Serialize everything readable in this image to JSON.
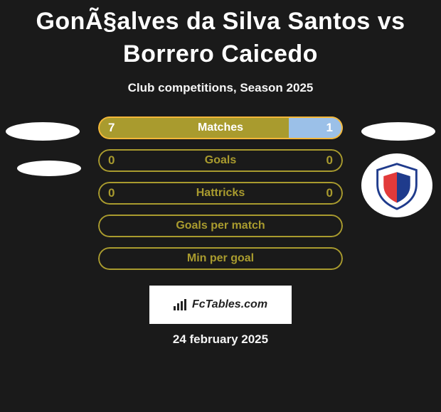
{
  "title": "GonÃ§alves da Silva Santos vs Borrero Caicedo",
  "subtitle": "Club competitions, Season 2025",
  "date": "24 february 2025",
  "footer_label": "FcTables.com",
  "colors": {
    "background": "#1a1a1a",
    "series_left": "#a99b2e",
    "series_right": "#9bc0e8",
    "outline": "#f4b739",
    "text": "#ffffff",
    "footer_bg": "#ffffff",
    "footer_text": "#222222"
  },
  "crest": {
    "top_color": "#ffffff",
    "left_color": "#e23a3a",
    "right_color": "#1f3b8c",
    "outline": "#1f3b8c"
  },
  "bars": [
    {
      "label": "Matches",
      "left": "7",
      "right": "1",
      "left_pct": 78,
      "right_pct": 22,
      "style": "split",
      "left_text_color": "#ffffff",
      "right_text_color": "#ffffff"
    },
    {
      "label": "Goals",
      "left": "0",
      "right": "0",
      "left_pct": 0,
      "right_pct": 0,
      "style": "outline",
      "left_text_color": "#a99b2e",
      "right_text_color": "#a99b2e"
    },
    {
      "label": "Hattricks",
      "left": "0",
      "right": "0",
      "left_pct": 0,
      "right_pct": 0,
      "style": "outline",
      "left_text_color": "#a99b2e",
      "right_text_color": "#a99b2e"
    },
    {
      "label": "Goals per match",
      "left": "",
      "right": "",
      "left_pct": 0,
      "right_pct": 0,
      "style": "outline"
    },
    {
      "label": "Min per goal",
      "left": "",
      "right": "",
      "left_pct": 0,
      "right_pct": 0,
      "style": "outline"
    }
  ]
}
